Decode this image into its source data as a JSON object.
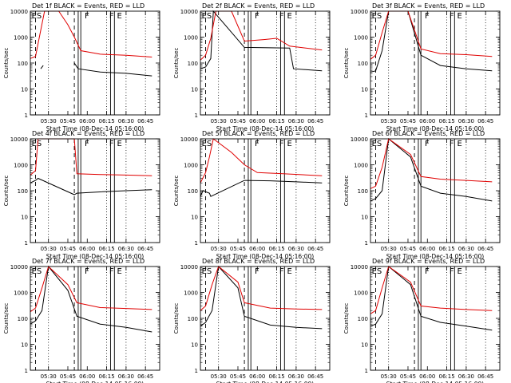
{
  "title_suffix": "BLACK = Events, RED = LLD",
  "xlabel": "Start Time (08-Dec-14 05:16:00)",
  "ylabel": "Counts/sec",
  "x_ticks": [
    "05:30",
    "05:45",
    "06:00",
    "06:15",
    "06:30",
    "06:45"
  ],
  "y_ticks": [
    "1",
    "10",
    "100",
    "1000",
    "10000"
  ],
  "colors": {
    "events": "#000000",
    "lld": "#e00000"
  },
  "chart_data": [
    {
      "type": "line",
      "detector": "1f",
      "title": "Det 1f BLACK = Events, RED = LLD",
      "yscale": "log",
      "ylim": [
        1,
        10000
      ],
      "flags": [
        "ES",
        "F",
        "F",
        "E"
      ],
      "series": [
        {
          "key": "events",
          "x": [
            "05:16",
            "05:22",
            "05:24",
            "05:26",
            "05:50",
            "05:50",
            "05:53",
            "06:10",
            "06:30",
            "06:50"
          ],
          "values": [
            null,
            null,
            60,
            80,
            null,
            100,
            60,
            45,
            40,
            32
          ]
        },
        {
          "key": "lld",
          "x": [
            "05:16",
            "05:20",
            "05:23",
            "05:27",
            "05:38",
            "05:45",
            "05:50",
            "05:55",
            "06:10",
            "06:30",
            "06:50"
          ],
          "values": [
            150,
            180,
            1000,
            10000,
            10000,
            3000,
            1000,
            300,
            220,
            200,
            170
          ]
        }
      ]
    },
    {
      "type": "line",
      "detector": "2f",
      "title": "Det 2f BLACK = Events, RED = LLD",
      "yscale": "log",
      "ylim": [
        1,
        10000
      ],
      "flags": [
        "ES",
        "F",
        "F",
        "E"
      ],
      "series": [
        {
          "key": "events",
          "x": [
            "05:16",
            "05:20",
            "05:24",
            "05:26",
            "05:50",
            "06:25",
            "06:28",
            "06:50"
          ],
          "values": [
            60,
            70,
            150,
            10000,
            400,
            380,
            60,
            50
          ]
        },
        {
          "key": "lld",
          "x": [
            "05:16",
            "05:20",
            "05:24",
            "05:28",
            "05:40",
            "05:50",
            "06:05",
            "06:15",
            "06:25",
            "06:50"
          ],
          "values": [
            130,
            200,
            900,
            10000,
            10000,
            700,
            800,
            900,
            450,
            320
          ]
        }
      ]
    },
    {
      "type": "line",
      "detector": "3f",
      "title": "Det 3f BLACK = Events, RED = LLD",
      "yscale": "log",
      "ylim": [
        1,
        10000
      ],
      "flags": [
        "ES",
        "F",
        "F",
        "E"
      ],
      "series": [
        {
          "key": "events",
          "x": [
            "05:16",
            "05:20",
            "05:25",
            "05:30",
            "05:45",
            "05:55",
            "06:10",
            "06:30",
            "06:50"
          ],
          "values": [
            45,
            50,
            300,
            10000,
            10000,
            200,
            80,
            60,
            50
          ]
        },
        {
          "key": "lld",
          "x": [
            "05:16",
            "05:20",
            "05:25",
            "05:30",
            "05:45",
            "05:55",
            "06:10",
            "06:30",
            "06:50"
          ],
          "values": [
            140,
            200,
            1500,
            10000,
            10000,
            350,
            230,
            210,
            180
          ]
        }
      ]
    },
    {
      "type": "line",
      "detector": "4f",
      "title": "Det 4f BLACK = Events, RED = LLD",
      "yscale": "log",
      "ylim": [
        1,
        10000
      ],
      "flags": [
        "ES",
        "F",
        "F",
        "E"
      ],
      "series": [
        {
          "key": "events",
          "x": [
            "05:16",
            "05:20",
            "05:22",
            "05:50",
            "05:52",
            "06:10",
            "06:30",
            "06:50"
          ],
          "values": [
            200,
            250,
            300,
            70,
            80,
            90,
            100,
            110
          ]
        },
        {
          "key": "lld",
          "x": [
            "05:16",
            "05:20",
            "05:22",
            "05:50",
            "05:52",
            "06:10",
            "06:30",
            "06:50"
          ],
          "values": [
            400,
            600,
            10000,
            10000,
            450,
            420,
            400,
            380
          ]
        }
      ]
    },
    {
      "type": "line",
      "detector": "5f",
      "title": "Det 5f BLACK = Events, RED = LLD",
      "yscale": "log",
      "ylim": [
        1,
        10000
      ],
      "flags": [
        "ES",
        "F",
        "F",
        "E"
      ],
      "series": [
        {
          "key": "events",
          "x": [
            "05:16",
            "05:18",
            "05:23",
            "05:24",
            "05:50",
            "06:10",
            "06:30",
            "06:50"
          ],
          "values": [
            60,
            100,
            80,
            60,
            250,
            240,
            220,
            200
          ]
        },
        {
          "key": "lld",
          "x": [
            "05:16",
            "05:20",
            "05:23",
            "05:26",
            "05:40",
            "05:50",
            "06:00",
            "06:20",
            "06:50"
          ],
          "values": [
            200,
            500,
            2000,
            10000,
            3000,
            1000,
            500,
            450,
            380
          ]
        }
      ]
    },
    {
      "type": "line",
      "detector": "6f",
      "title": "Det 6f BLACK = Events, RED = LLD",
      "yscale": "log",
      "ylim": [
        1,
        10000
      ],
      "flags": [
        "ES",
        "F",
        "F",
        "E"
      ],
      "series": [
        {
          "key": "events",
          "x": [
            "05:16",
            "05:20",
            "05:25",
            "05:30",
            "05:47",
            "05:55",
            "06:10",
            "06:30",
            "06:50"
          ],
          "values": [
            40,
            50,
            100,
            10000,
            2000,
            150,
            80,
            60,
            40
          ]
        },
        {
          "key": "lld",
          "x": [
            "05:16",
            "05:20",
            "05:25",
            "05:30",
            "05:47",
            "05:55",
            "06:10",
            "06:30",
            "06:50"
          ],
          "values": [
            120,
            150,
            800,
            10000,
            2500,
            350,
            280,
            250,
            220
          ]
        }
      ]
    },
    {
      "type": "line",
      "detector": "7f",
      "title": "Det 7f BLACK = Events, RED = LLD",
      "yscale": "log",
      "ylim": [
        1,
        10000
      ],
      "flags": [
        "ES",
        "F",
        "F",
        "E"
      ],
      "series": [
        {
          "key": "events",
          "x": [
            "05:16",
            "05:20",
            "05:25",
            "05:30",
            "05:45",
            "05:52",
            "06:10",
            "06:30",
            "06:50"
          ],
          "values": [
            60,
            80,
            200,
            10000,
            1200,
            120,
            60,
            45,
            30
          ]
        },
        {
          "key": "lld",
          "x": [
            "05:16",
            "05:20",
            "05:25",
            "05:30",
            "05:45",
            "05:52",
            "06:10",
            "06:30",
            "06:50"
          ],
          "values": [
            180,
            250,
            1500,
            10000,
            2000,
            400,
            260,
            240,
            220
          ]
        }
      ]
    },
    {
      "type": "line",
      "detector": "8f",
      "title": "Det 8f BLACK = Events, RED = LLD",
      "yscale": "log",
      "ylim": [
        1,
        10000
      ],
      "flags": [
        "ES",
        "F",
        "F",
        "E"
      ],
      "series": [
        {
          "key": "events",
          "x": [
            "05:16",
            "05:20",
            "05:25",
            "05:30",
            "05:45",
            "05:50",
            "06:10",
            "06:30",
            "06:50"
          ],
          "values": [
            50,
            70,
            200,
            10000,
            1500,
            120,
            55,
            45,
            40
          ]
        },
        {
          "key": "lld",
          "x": [
            "05:16",
            "05:20",
            "05:25",
            "05:30",
            "05:45",
            "05:50",
            "06:10",
            "06:30",
            "06:50"
          ],
          "values": [
            200,
            300,
            2000,
            10000,
            2500,
            400,
            250,
            230,
            220
          ]
        }
      ]
    },
    {
      "type": "line",
      "detector": "9f",
      "title": "Det 9f BLACK = Events, RED = LLD",
      "yscale": "log",
      "ylim": [
        1,
        10000
      ],
      "flags": [
        "ES",
        "F",
        "F",
        "E"
      ],
      "series": [
        {
          "key": "events",
          "x": [
            "05:16",
            "05:20",
            "05:25",
            "05:30",
            "05:47",
            "05:55",
            "06:10",
            "06:30",
            "06:50"
          ],
          "values": [
            50,
            60,
            150,
            10000,
            2000,
            120,
            70,
            50,
            35
          ]
        },
        {
          "key": "lld",
          "x": [
            "05:16",
            "05:20",
            "05:25",
            "05:30",
            "05:47",
            "05:55",
            "06:10",
            "06:30",
            "06:50"
          ],
          "values": [
            150,
            200,
            1500,
            10000,
            2500,
            300,
            250,
            220,
            200
          ]
        }
      ]
    }
  ]
}
